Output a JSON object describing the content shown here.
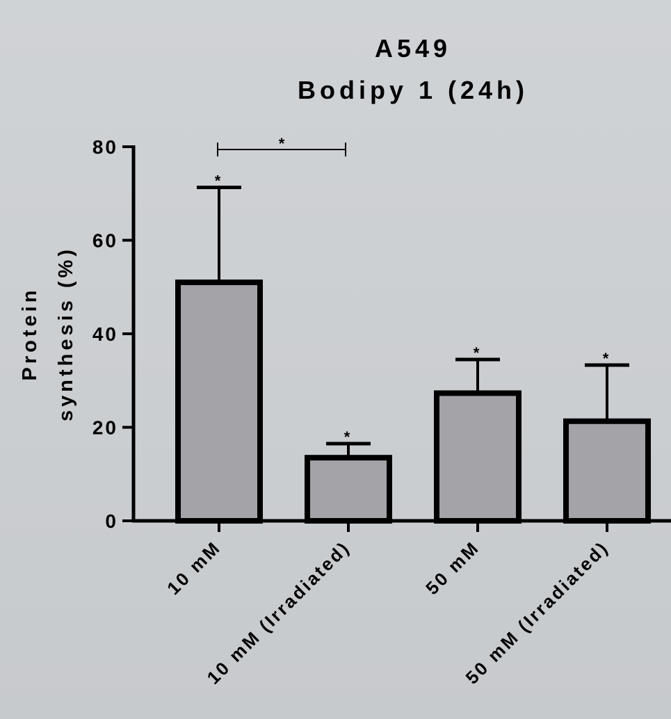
{
  "chart_data": {
    "type": "bar",
    "title": [
      "A549",
      "Bodipy 1 (24h)"
    ],
    "ylabel": [
      "Protein",
      "synthesis (%)"
    ],
    "xlabel": "",
    "ylim": [
      0,
      80
    ],
    "yticks": [
      0,
      20,
      40,
      60,
      80
    ],
    "categories": [
      "10 mM",
      "10 mM (Irradiated)",
      "50 mM",
      "50 mM (Irradiated)"
    ],
    "values": [
      51,
      13.5,
      27.3,
      21.3
    ],
    "error_upper": [
      71.3,
      16.5,
      34.5,
      33.3
    ],
    "significance_marks": [
      "*",
      "*",
      "*",
      "*"
    ],
    "comparison": {
      "from": 0,
      "to": 1,
      "label": "*"
    },
    "bar_fill": "#a3a3a8",
    "bar_stroke": "#000000",
    "background": "#cacdd0",
    "grid": false,
    "legend": "none"
  }
}
